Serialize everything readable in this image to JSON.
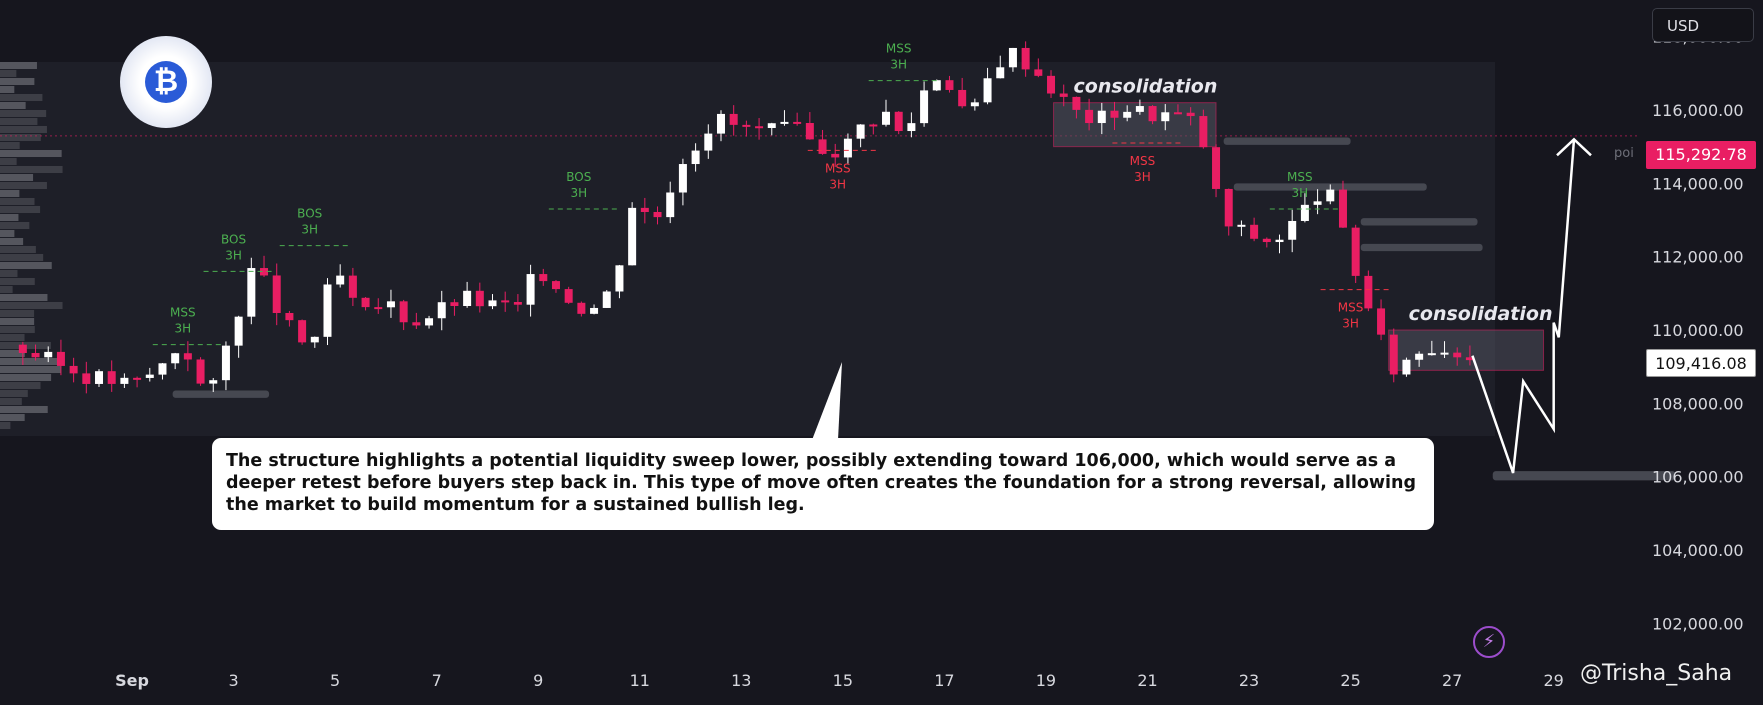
{
  "currency_label": "USD",
  "price_current": "115,292.78",
  "price_last": "109,416.08",
  "poi_label": "poi",
  "note_text": "The structure highlights a potential liquidity sweep lower, possibly extending toward 106,000, which would serve as a deeper retest before buyers step back in. This type of move often creates the foundation for a strong reversal, allowing the market to build momentum for a sustained bullish leg.",
  "watermark": "@Trisha_Saha",
  "logo_icon": "bitcoin-logo-icon",
  "colors": {
    "up": "#ffffff",
    "down": "#e91e63",
    "background": "#16161e",
    "accent": "#e91e63"
  },
  "chart_data": {
    "type": "candlestick",
    "y_ticks": [
      "118,000.00",
      "116,000.00",
      "114,000.00",
      "112,000.00",
      "110,000.00",
      "108,000.00",
      "106,000.00",
      "104,000.00",
      "102,000.00"
    ],
    "y_tick_values": [
      118000,
      116000,
      114000,
      112000,
      110000,
      108000,
      106000,
      104000,
      102000
    ],
    "ylim": [
      101000,
      119000
    ],
    "x_ticks": [
      "Sep",
      "3",
      "5",
      "7",
      "9",
      "11",
      "13",
      "15",
      "17",
      "19",
      "21",
      "23",
      "25",
      "27",
      "29"
    ],
    "x_tick_days": [
      1,
      3,
      5,
      7,
      9,
      11,
      13,
      15,
      17,
      19,
      21,
      23,
      25,
      27,
      29
    ],
    "xlim": [
      -1.6,
      30.7
    ],
    "poi_level": 115292.78,
    "last_price": 109416.08,
    "path": [
      [
        -1.4,
        109600
      ],
      [
        0,
        108800
      ],
      [
        1,
        108500
      ],
      [
        1.5,
        108900
      ],
      [
        2,
        109700
      ],
      [
        2.5,
        108000
      ],
      [
        3,
        110200
      ],
      [
        3.4,
        111800
      ],
      [
        3.7,
        111000
      ],
      [
        4,
        110200
      ],
      [
        4.5,
        109400
      ],
      [
        5,
        111700
      ],
      [
        5.5,
        110300
      ],
      [
        6,
        110800
      ],
      [
        6.5,
        110200
      ],
      [
        7,
        110500
      ],
      [
        7.5,
        110900
      ],
      [
        8,
        110700
      ],
      [
        8.6,
        110600
      ],
      [
        9,
        111700
      ],
      [
        9.5,
        111000
      ],
      [
        10,
        110500
      ],
      [
        10.5,
        111200
      ],
      [
        10.8,
        113500
      ],
      [
        11.3,
        113000
      ],
      [
        11.8,
        114600
      ],
      [
        12.5,
        115800
      ],
      [
        13,
        115500
      ],
      [
        13.5,
        115400
      ],
      [
        14,
        115500
      ],
      [
        14.5,
        115000
      ],
      [
        15,
        114900
      ],
      [
        15.3,
        115500
      ],
      [
        15.8,
        116000
      ],
      [
        16.2,
        115200
      ],
      [
        16.7,
        116900
      ],
      [
        17,
        117000
      ],
      [
        17.5,
        115700
      ],
      [
        18,
        117300
      ],
      [
        18.4,
        117600
      ],
      [
        19,
        116800
      ],
      [
        19.5,
        116000
      ],
      [
        20,
        115700
      ],
      [
        20.5,
        116100
      ],
      [
        21,
        115900
      ],
      [
        21.5,
        115900
      ],
      [
        22,
        115600
      ],
      [
        22.5,
        112900
      ],
      [
        23,
        112600
      ],
      [
        23.5,
        112400
      ],
      [
        24,
        113100
      ],
      [
        24.5,
        114000
      ],
      [
        25,
        112000
      ],
      [
        25.5,
        110000
      ],
      [
        25.8,
        108900
      ],
      [
        26.5,
        109600
      ],
      [
        27,
        109500
      ],
      [
        27.4,
        109300
      ]
    ],
    "projection": [
      [
        27.4,
        109300
      ],
      [
        28.2,
        106100
      ],
      [
        28.4,
        108600
      ],
      [
        29,
        107300
      ],
      [
        29,
        110200
      ],
      [
        29.1,
        109800
      ],
      [
        29.4,
        115200
      ]
    ],
    "annotations": [
      {
        "label": "MSS",
        "sub": "3H",
        "x": 2,
        "level": 109600,
        "color": "green"
      },
      {
        "label": "BOS",
        "sub": "3H",
        "x": 3,
        "level": 111600,
        "color": "green"
      },
      {
        "label": "BOS",
        "sub": "3H",
        "x": 4.5,
        "level": 112300,
        "color": "green"
      },
      {
        "label": "BOS",
        "sub": "3H",
        "x": 9.8,
        "level": 113300,
        "color": "green"
      },
      {
        "label": "MSS",
        "sub": "3H",
        "x": 14.9,
        "level": 114900,
        "color": "red"
      },
      {
        "label": "MSS",
        "sub": "3H",
        "x": 16.1,
        "level": 116800,
        "color": "green"
      },
      {
        "label": "MSS",
        "sub": "3H",
        "x": 20.9,
        "level": 115100,
        "color": "red"
      },
      {
        "label": "MSS",
        "sub": "3H",
        "x": 24,
        "level": 113300,
        "color": "green"
      },
      {
        "label": "MSS",
        "sub": "3H",
        "x": 25,
        "level": 111100,
        "color": "red"
      }
    ],
    "consolidation_zones": [
      {
        "label": "consolidation",
        "x0": 19.15,
        "x1": 22.35,
        "y0": 115000,
        "y1": 116200
      },
      {
        "label": "consolidation",
        "x0": 25.75,
        "x1": 28.8,
        "y0": 108900,
        "y1": 110000
      }
    ],
    "target_level": 106000
  }
}
